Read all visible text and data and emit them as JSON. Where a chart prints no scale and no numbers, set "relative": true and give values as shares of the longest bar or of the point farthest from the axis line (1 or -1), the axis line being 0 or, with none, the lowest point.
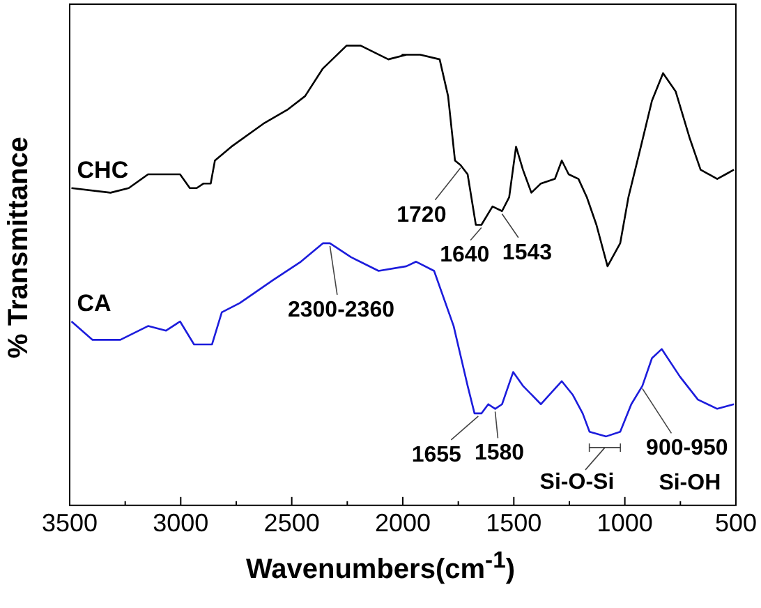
{
  "chart_data": {
    "type": "line",
    "relative": true,
    "xlabel": "Wavenumbers(cm$^{-1}$)",
    "ylabel": "% Transmittance",
    "xlim": [
      3500,
      500
    ],
    "xticks": [
      3500,
      {
        "value": 3250,
        "label": null
      },
      3000,
      {
        "value": 2750,
        "label": null
      },
      2500,
      {
        "value": 2250,
        "label": null
      },
      2000,
      {
        "value": 1750,
        "label": null
      },
      1500,
      {
        "value": 1250,
        "label": null
      },
      1000,
      {
        "value": 750,
        "label": null
      },
      500
    ],
    "grid": false,
    "legend": false,
    "marker": "none",
    "line_style": "solid",
    "series": [
      {
        "name": "CHC",
        "color": "#000000",
        "x": [
          3492,
          3316,
          3234,
          3147,
          3066,
          3003,
          2959,
          2928,
          2897,
          2865,
          2846,
          2772,
          2628,
          2521,
          2440,
          2360,
          2253,
          2190,
          2065,
          1984,
          2002,
          1921,
          1834,
          1796,
          1765,
          1740,
          1708,
          1671,
          1646,
          1596,
          1553,
          1521,
          1490,
          1459,
          1421,
          1378,
          1315,
          1284,
          1253,
          1209,
          1171,
          1128,
          1078,
          1021,
          984,
          928,
          878,
          828,
          771,
          709,
          659,
          584,
          546,
          509
        ],
        "values": [
          0.69,
          0.68,
          0.69,
          0.72,
          0.72,
          0.72,
          0.69,
          0.69,
          0.7,
          0.7,
          0.75,
          0.78,
          0.83,
          0.86,
          0.89,
          0.95,
          1.0,
          1.0,
          0.97,
          0.98,
          0.98,
          0.98,
          0.97,
          0.89,
          0.75,
          0.74,
          0.72,
          0.61,
          0.61,
          0.65,
          0.64,
          0.67,
          0.78,
          0.73,
          0.68,
          0.7,
          0.71,
          0.75,
          0.72,
          0.71,
          0.67,
          0.61,
          0.52,
          0.57,
          0.67,
          0.78,
          0.88,
          0.94,
          0.9,
          0.8,
          0.73,
          0.71,
          0.72,
          0.73
        ]
      },
      {
        "name": "CA",
        "color": "#1c1cdc",
        "x": [
          3492,
          3397,
          3272,
          3147,
          3066,
          3003,
          2940,
          2897,
          2859,
          2815,
          2734,
          2584,
          2459,
          2360,
          2328,
          2234,
          2109,
          1984,
          1940,
          1859,
          1771,
          1708,
          1677,
          1646,
          1615,
          1584,
          1553,
          1503,
          1459,
          1378,
          1284,
          1234,
          1190,
          1159,
          1084,
          1021,
          971,
          921,
          878,
          834,
          752,
          671,
          584,
          509
        ],
        "values": [
          0.4,
          0.36,
          0.36,
          0.39,
          0.38,
          0.4,
          0.35,
          0.35,
          0.35,
          0.42,
          0.44,
          0.49,
          0.53,
          0.57,
          0.57,
          0.54,
          0.51,
          0.52,
          0.53,
          0.51,
          0.39,
          0.26,
          0.2,
          0.2,
          0.22,
          0.21,
          0.22,
          0.29,
          0.26,
          0.22,
          0.27,
          0.24,
          0.2,
          0.16,
          0.15,
          0.16,
          0.22,
          0.26,
          0.32,
          0.34,
          0.28,
          0.23,
          0.21,
          0.22
        ]
      }
    ],
    "annotations": [
      {
        "text": "1720",
        "x": 1740,
        "y": 0.74
      },
      {
        "text": "1640",
        "x": 1646,
        "y": 0.61
      },
      {
        "text": "1543",
        "x": 1553,
        "y": 0.64
      },
      {
        "text": "2300-2360",
        "x": 2328,
        "y": 0.57
      },
      {
        "text": "1655",
        "x": 1660,
        "y": 0.2
      },
      {
        "text": "1580",
        "x": 1584,
        "y": 0.21
      },
      {
        "text": "Si-O-Si",
        "x": 1090,
        "y": 0.15
      },
      {
        "text": "900-950",
        "x": 921,
        "y": 0.26
      },
      "Si-OH"
    ]
  }
}
